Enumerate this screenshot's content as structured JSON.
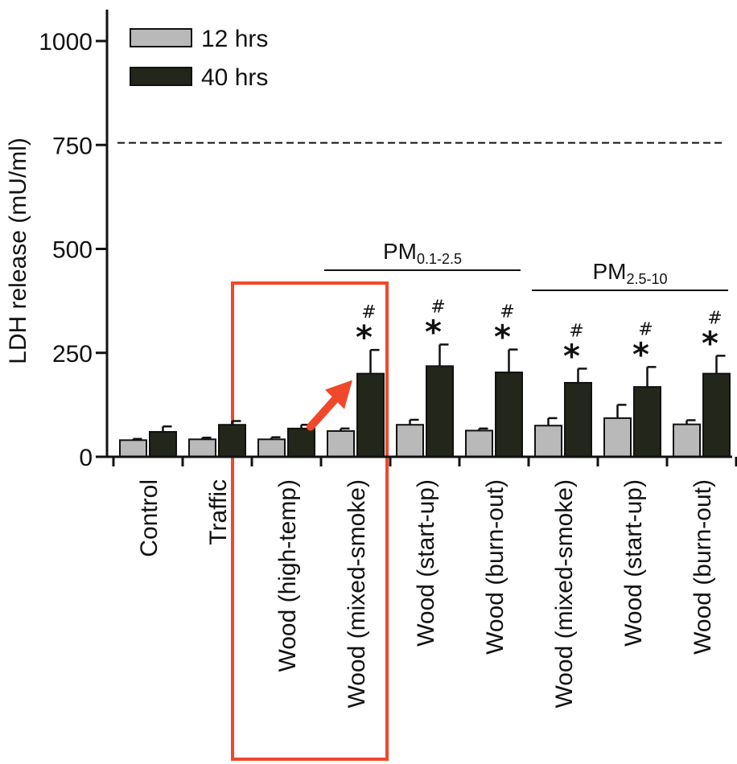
{
  "colors": {
    "series_12": "#b9b9b9",
    "series_40": "#23261a",
    "highlight": "#f0482b",
    "axis": "#111111"
  },
  "chart_data": {
    "type": "bar",
    "title": "",
    "xlabel": "",
    "ylabel": "LDH release (mU/ml)",
    "ylim": [
      0,
      1000
    ],
    "yticks": [
      0,
      250,
      500,
      750,
      1000
    ],
    "reference_line": {
      "value": 755,
      "style": "dashed"
    },
    "categories": [
      "Control",
      "Traffic",
      "Wood (high-temp)",
      "Wood (mixed-smoke)",
      "Wood (start-up)",
      "Wood (burn-out)",
      "Wood (mixed-smoke)",
      "Wood (start-up)",
      "Wood (burn-out)"
    ],
    "series": [
      {
        "name": "12 hrs",
        "values": [
          40,
          42,
          42,
          62,
          77,
          63,
          75,
          93,
          78
        ],
        "errors": [
          3,
          4,
          5,
          6,
          12,
          5,
          18,
          32,
          10
        ]
      },
      {
        "name": "40 hrs",
        "values": [
          60,
          77,
          68,
          200,
          218,
          203,
          178,
          168,
          200
        ],
        "errors": [
          13,
          9,
          9,
          57,
          52,
          55,
          34,
          48,
          43
        ]
      }
    ],
    "significance": {
      "star": "*",
      "hash": "#",
      "marked_categories": [
        3,
        4,
        5,
        6,
        7,
        8
      ]
    },
    "groups": [
      {
        "label_main": "PM",
        "label_sub": "0.1-2.5",
        "from": 3,
        "to": 5
      },
      {
        "label_main": "PM",
        "label_sub": "2.5-10",
        "from": 6,
        "to": 8
      }
    ],
    "legend": {
      "position": "top-left"
    },
    "highlight": {
      "from": 2,
      "to": 3,
      "arrow_target": 3
    },
    "grid": false
  }
}
